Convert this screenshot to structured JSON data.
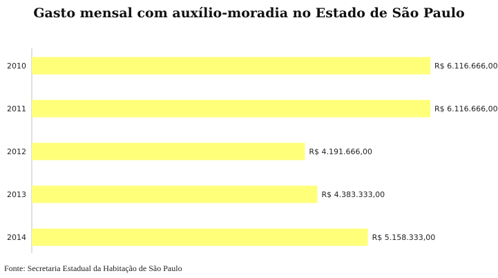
{
  "chart_data": {
    "type": "bar",
    "orientation": "horizontal",
    "title": "Gasto mensal com auxílio-moradia no Estado de São Paulo",
    "categories": [
      "2010",
      "2011",
      "2012",
      "2013",
      "2014"
    ],
    "values": [
      6116666.0,
      6116666.0,
      4191666.0,
      4383333.0,
      5158333.0
    ],
    "value_labels": [
      "R$ 6.116.666,00",
      "R$ 6.116.666,00",
      "R$ 4.191.666,00",
      "R$ 4.383.333,00",
      "R$ 5.158.333,00"
    ],
    "xlabel": "",
    "ylabel": "",
    "xlim": [
      0,
      6116666
    ],
    "grid": false,
    "legend": "none",
    "bar_color": "#ffff7a"
  },
  "source": "Fonte: Secretaria Estadual da Habitação de São Paulo"
}
